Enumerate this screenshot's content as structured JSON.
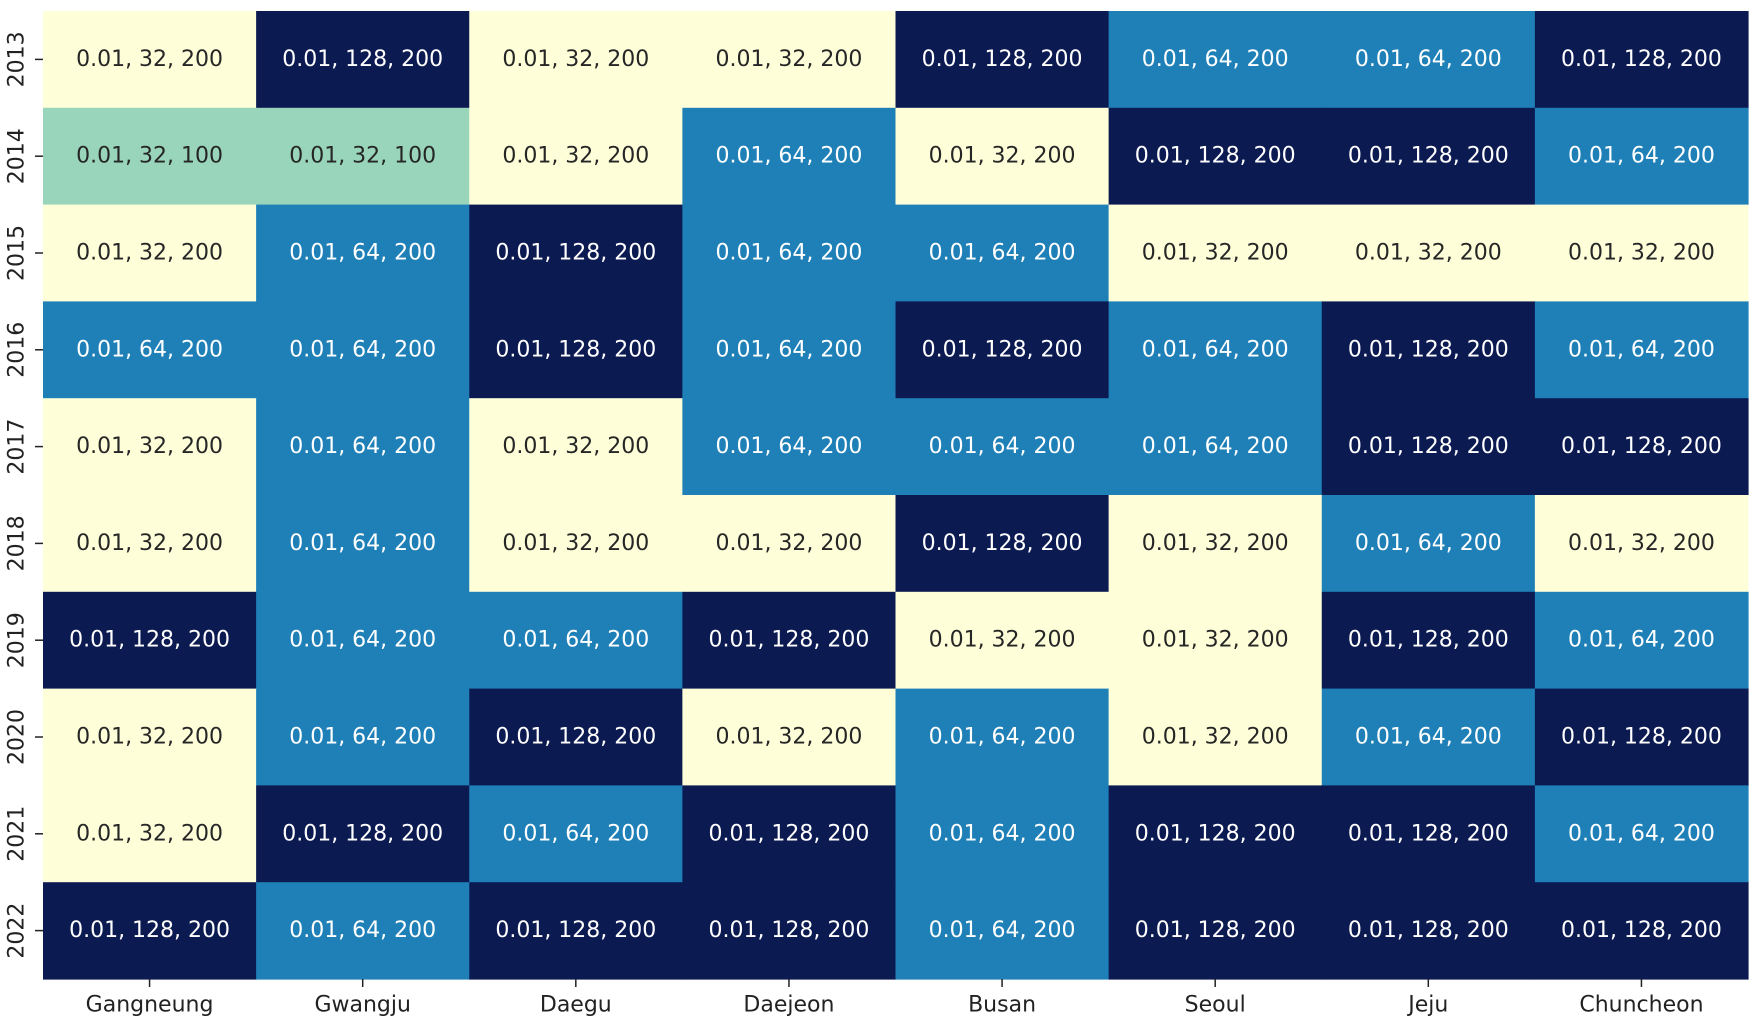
{
  "chart_data": {
    "type": "heatmap",
    "title": "",
    "xlabel": "",
    "ylabel": "",
    "x_categories": [
      "Gangneung",
      "Gwangju",
      "Daegu",
      "Daejeon",
      "Busan",
      "Seoul",
      "Jeju",
      "Chuncheon"
    ],
    "y_categories": [
      "2013",
      "2014",
      "2015",
      "2016",
      "2017",
      "2018",
      "2019",
      "2020",
      "2021",
      "2022"
    ],
    "cells": [
      [
        "0.01, 32, 200",
        "0.01, 128, 200",
        "0.01, 32, 200",
        "0.01, 32, 200",
        "0.01, 128, 200",
        "0.01, 64, 200",
        "0.01, 64, 200",
        "0.01, 128, 200"
      ],
      [
        "0.01, 32, 100",
        "0.01, 32, 100",
        "0.01, 32, 200",
        "0.01, 64, 200",
        "0.01, 32, 200",
        "0.01, 128, 200",
        "0.01, 128, 200",
        "0.01, 64, 200"
      ],
      [
        "0.01, 32, 200",
        "0.01, 64, 200",
        "0.01, 128, 200",
        "0.01, 64, 200",
        "0.01, 64, 200",
        "0.01, 32, 200",
        "0.01, 32, 200",
        "0.01, 32, 200"
      ],
      [
        "0.01, 64, 200",
        "0.01, 64, 200",
        "0.01, 128, 200",
        "0.01, 64, 200",
        "0.01, 128, 200",
        "0.01, 64, 200",
        "0.01, 128, 200",
        "0.01, 64, 200"
      ],
      [
        "0.01, 32, 200",
        "0.01, 64, 200",
        "0.01, 32, 200",
        "0.01, 64, 200",
        "0.01, 64, 200",
        "0.01, 64, 200",
        "0.01, 128, 200",
        "0.01, 128, 200"
      ],
      [
        "0.01, 32, 200",
        "0.01, 64, 200",
        "0.01, 32, 200",
        "0.01, 32, 200",
        "0.01, 128, 200",
        "0.01, 32, 200",
        "0.01, 64, 200",
        "0.01, 32, 200"
      ],
      [
        "0.01, 128, 200",
        "0.01, 64, 200",
        "0.01, 64, 200",
        "0.01, 128, 200",
        "0.01, 32, 200",
        "0.01, 32, 200",
        "0.01, 128, 200",
        "0.01, 64, 200"
      ],
      [
        "0.01, 32, 200",
        "0.01, 64, 200",
        "0.01, 128, 200",
        "0.01, 32, 200",
        "0.01, 64, 200",
        "0.01, 32, 200",
        "0.01, 64, 200",
        "0.01, 128, 200"
      ],
      [
        "0.01, 32, 200",
        "0.01, 128, 200",
        "0.01, 64, 200",
        "0.01, 128, 200",
        "0.01, 64, 200",
        "0.01, 128, 200",
        "0.01, 128, 200",
        "0.01, 64, 200"
      ],
      [
        "0.01, 128, 200",
        "0.01, 64, 200",
        "0.01, 128, 200",
        "0.01, 128, 200",
        "0.01, 64, 200",
        "0.01, 128, 200",
        "0.01, 128, 200",
        "0.01, 128, 200"
      ]
    ],
    "color_map": {
      "0.01, 32, 100": "#99d5bb",
      "0.01, 32, 200": "#feffd9",
      "0.01, 64, 200": "#1f80b8",
      "0.01, 128, 200": "#0c1a52"
    },
    "text_colors": {
      "0.01, 32, 100": "#262626",
      "0.01, 32, 200": "#262626",
      "0.01, 64, 200": "#ffffff",
      "0.01, 128, 200": "#ffffff"
    },
    "grid": false,
    "colorbar": false
  }
}
